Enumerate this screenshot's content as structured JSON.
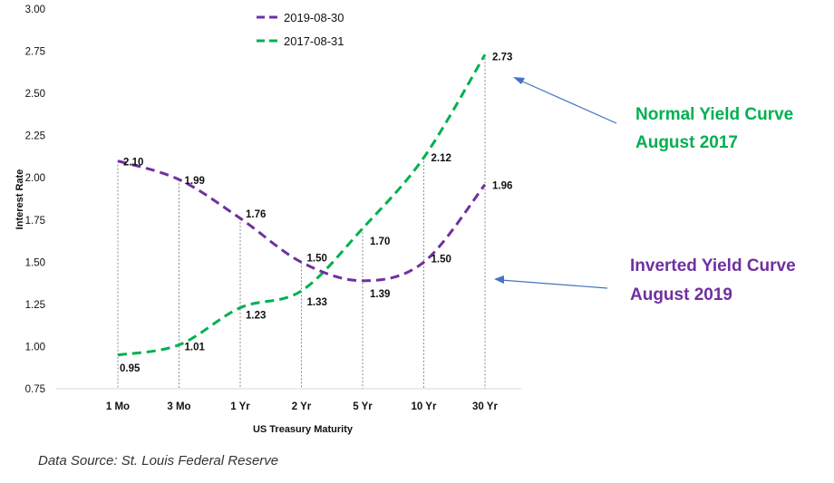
{
  "chart_data": {
    "type": "line",
    "categories": [
      "1 Mo",
      "3 Mo",
      "1 Yr",
      "2 Yr",
      "5 Yr",
      "10 Yr",
      "30 Yr"
    ],
    "series": [
      {
        "name": "2019-08-30",
        "color": "#7030a0",
        "style": "dashed",
        "values": [
          2.1,
          1.99,
          1.76,
          1.5,
          1.39,
          1.5,
          1.96
        ],
        "labels": [
          "2.10",
          "1.99",
          "1.76",
          "1.50",
          "1.39",
          "1.50",
          "1.96"
        ]
      },
      {
        "name": "2017-08-31",
        "color": "#00b050",
        "style": "dashed",
        "values": [
          0.95,
          1.01,
          1.23,
          1.33,
          1.7,
          2.12,
          2.73
        ],
        "labels": [
          "0.95",
          "1.01",
          "1.23",
          "1.33",
          "1.70",
          "2.12",
          "2.73"
        ]
      }
    ],
    "xlabel": "US Treasury Maturity",
    "ylabel": "Interest Rate",
    "ylim": [
      0.75,
      3.0
    ],
    "yticks": [
      "0.75",
      "1.00",
      "1.25",
      "1.50",
      "1.75",
      "2.00",
      "2.25",
      "2.50",
      "2.75",
      "3.00"
    ],
    "grid": "vertical drop lines",
    "legend": "top-center",
    "annotations": [
      {
        "line1": "Normal Yield Curve",
        "line2": "August 2017",
        "color": "#00b050",
        "points_to": "30 Yr"
      },
      {
        "line1": "Inverted Yield Curve",
        "line2": "August 2019",
        "color": "#7030a0",
        "points_to": "30 Yr"
      }
    ],
    "arrow_color": "#4472c4"
  },
  "source": "Data Source: St. Louis Federal Reserve"
}
